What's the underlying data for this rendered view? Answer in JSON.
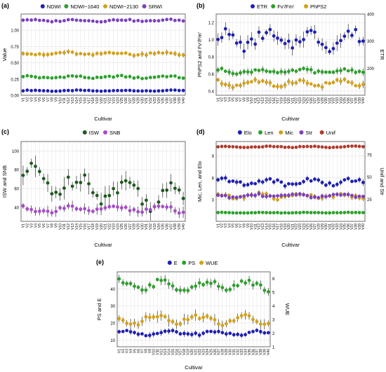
{
  "cultivars": [
    "V1",
    "V2",
    "V3",
    "V4",
    "V5",
    "V6",
    "V7",
    "V8",
    "V9",
    "V10",
    "V11",
    "V12",
    "V13",
    "V14",
    "V15",
    "V16",
    "V17",
    "V18",
    "V19",
    "V20",
    "V21",
    "V22",
    "V23",
    "V24",
    "V25",
    "V26",
    "V27",
    "V28",
    "V29",
    "V30",
    "V31",
    "V32",
    "V33",
    "V34",
    "V35",
    "V36",
    "V37",
    "V38",
    "V39",
    "V40"
  ],
  "chart_data": [
    {
      "id": "a",
      "panel_label": "(a)",
      "type": "scatter",
      "xlabel": "Cultivar",
      "ylabel": "Value",
      "ylim": [
        0,
        1.25
      ],
      "yticks": [
        0.0,
        0.25,
        0.5,
        0.75,
        1.0
      ],
      "ytick_labels": [
        "0.00",
        "0.25",
        "0.50",
        "0.75",
        "1.00"
      ],
      "grid": true,
      "legend_position": "top",
      "series": [
        {
          "name": "NDWI",
          "axis": "left",
          "color": "#1f1fb4",
          "base": 0.07,
          "amp": 0.006,
          "phase": 0.4,
          "err": 0.01
        },
        {
          "name": "NDWI−1640",
          "axis": "left",
          "color": "#2ca02c",
          "base": 0.28,
          "amp": 0.015,
          "phase": 1.3,
          "err": 0.02
        },
        {
          "name": "NDWI−2130",
          "axis": "left",
          "color": "#d4a017",
          "base": 0.64,
          "amp": 0.02,
          "phase": 2.1,
          "err": 0.03
        },
        {
          "name": "SRWI",
          "axis": "left",
          "color": "#7b3fbf",
          "base": 1.15,
          "amp": 0.012,
          "phase": 0.9,
          "err": 0.02
        }
      ]
    },
    {
      "id": "b",
      "panel_label": "(b)",
      "type": "scatter",
      "xlabel": "Cultivar",
      "ylabel": "PhPS2 and Fv'/Fm'",
      "y2label": "ETR",
      "ylim": [
        0.35,
        1.3
      ],
      "yticks": [
        0.4,
        0.6,
        0.8,
        1.0,
        1.2
      ],
      "ytick_labels": [
        "0.4",
        "0.6",
        "0.8",
        "1.0",
        "1.2"
      ],
      "y2lim": [
        100,
        400
      ],
      "y2ticks": [
        200,
        300,
        400
      ],
      "y2tick_labels": [
        "200",
        "300",
        "400"
      ],
      "grid": true,
      "legend_position": "top",
      "series": [
        {
          "name": "ETR",
          "axis": "right",
          "color": "#1f1fb4",
          "base": 305,
          "amp": 25,
          "phase": 0.7,
          "err": 20
        },
        {
          "name": "Fv'/Fm'",
          "axis": "left",
          "color": "#2ca02c",
          "base": 0.63,
          "amp": 0.02,
          "phase": 1.5,
          "err": 0.03
        },
        {
          "name": "PhPS2",
          "axis": "left",
          "color": "#d4a017",
          "base": 0.49,
          "amp": 0.03,
          "phase": 2.4,
          "err": 0.03
        }
      ]
    },
    {
      "id": "c",
      "panel_label": "(c)",
      "type": "scatter",
      "xlabel": "Cultivar",
      "ylabel": "ISW and SNB",
      "ylim": [
        25,
        110
      ],
      "yticks": [
        40,
        60,
        80,
        100
      ],
      "ytick_labels": [
        "40",
        "60",
        "80",
        "100"
      ],
      "grid": true,
      "legend_position": "top",
      "series": [
        {
          "name": "ISW",
          "axis": "left",
          "color": "#1e5a1e",
          "base": 72,
          "amp": 10,
          "phase": 0.2,
          "err": 8,
          "trend": -0.6
        },
        {
          "name": "SNB",
          "axis": "left",
          "color": "#a64cc9",
          "base": 38,
          "amp": 3,
          "phase": 1.8,
          "err": 4
        }
      ]
    },
    {
      "id": "d",
      "panel_label": "(d)",
      "type": "scatter",
      "xlabel": "Cultivar",
      "ylabel": "Mic, Len, and Elo",
      "y2label": "Unif and Str",
      "ylim": [
        0,
        11
      ],
      "yticks": [
        3,
        6,
        9
      ],
      "ytick_labels": [
        "3",
        "6",
        "9"
      ],
      "y2lim": [
        0,
        90
      ],
      "y2ticks": [
        25,
        50,
        75
      ],
      "y2tick_labels": [
        "25",
        "50",
        "75"
      ],
      "grid": true,
      "legend_position": "top",
      "series": [
        {
          "name": "Elo",
          "axis": "left",
          "color": "#1f1fb4",
          "base": 5.4,
          "amp": 0.4,
          "phase": 0.5,
          "err": 0.3
        },
        {
          "name": "Len",
          "axis": "left",
          "color": "#2ca02c",
          "base": 1.2,
          "amp": 0.03,
          "phase": 1.1,
          "err": 0.04
        },
        {
          "name": "Mic",
          "axis": "left",
          "color": "#d4a017",
          "base": 3.5,
          "amp": 0.3,
          "phase": 2.0,
          "err": 0.3
        },
        {
          "name": "Str",
          "axis": "right",
          "color": "#7b3fbf",
          "base": 29,
          "amp": 1.5,
          "phase": 2.7,
          "err": 2
        },
        {
          "name": "Unif",
          "axis": "right",
          "color": "#b03a2e",
          "base": 84,
          "amp": 0.5,
          "phase": 0.3,
          "err": 0.6
        }
      ]
    },
    {
      "id": "e",
      "panel_label": "(e)",
      "type": "scatter",
      "xlabel": "Cultivar",
      "ylabel": "PS and E",
      "y2label": "WUE",
      "ylim": [
        6,
        50
      ],
      "yticks": [
        10,
        20,
        30,
        40
      ],
      "ytick_labels": [
        "10",
        "20",
        "30",
        "40"
      ],
      "y2lim": [
        1,
        6.5
      ],
      "y2ticks": [
        1,
        2,
        3,
        4,
        5,
        6
      ],
      "y2tick_labels": [
        "1",
        "2",
        "3",
        "4",
        "5",
        "6"
      ],
      "grid": true,
      "legend_position": "top",
      "series": [
        {
          "name": "E",
          "axis": "left",
          "color": "#1f1fb4",
          "base": 14,
          "amp": 1.0,
          "phase": 0.6,
          "err": 1.3
        },
        {
          "name": "PS",
          "axis": "left",
          "color": "#2ca02c",
          "base": 42,
          "amp": 2.2,
          "phase": 1.7,
          "err": 2.0
        },
        {
          "name": "WUE",
          "axis": "right",
          "color": "#d4a017",
          "base": 3.0,
          "amp": 0.25,
          "phase": 2.5,
          "err": 0.3
        }
      ]
    }
  ]
}
